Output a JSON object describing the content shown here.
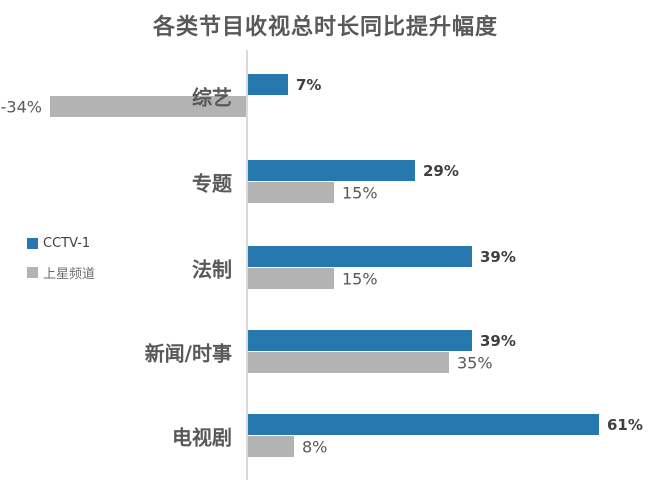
{
  "title": "各类节目收视总时长同比提升幅度",
  "legend": [
    {
      "label": "CCTV-1",
      "color": "#2878B0"
    },
    {
      "label": "上星频道",
      "color": "#B3B3B3"
    }
  ],
  "chart_data": {
    "type": "bar",
    "orientation": "horizontal",
    "title": "各类节目收视总时长同比提升幅度",
    "categories": [
      "综艺",
      "专题",
      "法制",
      "新闻/时事",
      "电视剧"
    ],
    "series": [
      {
        "name": "CCTV-1",
        "color": "#2878B0",
        "values": [
          7,
          29,
          39,
          39,
          61
        ]
      },
      {
        "name": "上星频道",
        "color": "#B3B3B3",
        "values": [
          -34,
          15,
          15,
          35,
          8
        ]
      }
    ],
    "value_suffix": "%",
    "xlim": [
      -34,
      61
    ],
    "grid": false,
    "legend_position": "middle-left",
    "axis_color": "#D9D9D9",
    "background": "#FFFFFF"
  }
}
